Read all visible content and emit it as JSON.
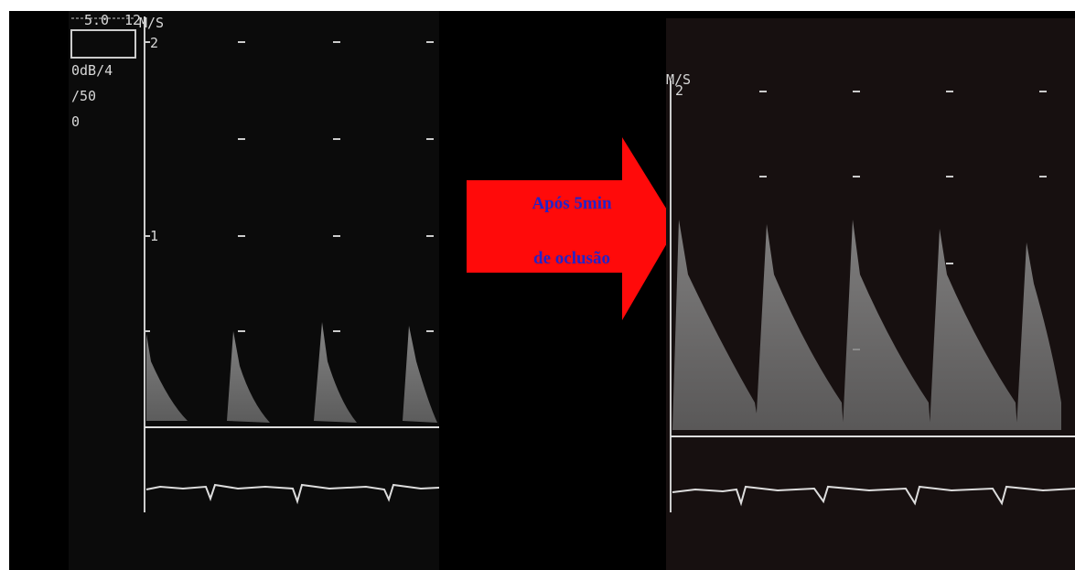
{
  "left_panel": {
    "scale_top": "5.0",
    "scale_right": "12",
    "unit": "M/S",
    "tick_2": "2",
    "tick_1": "1",
    "settings": [
      "0dB/4",
      "/50",
      "0"
    ]
  },
  "arrow": {
    "line1": "Após 5min",
    "line2": "de oclusão"
  },
  "right_panel": {
    "unit": "M/S",
    "tick_2": "2"
  }
}
